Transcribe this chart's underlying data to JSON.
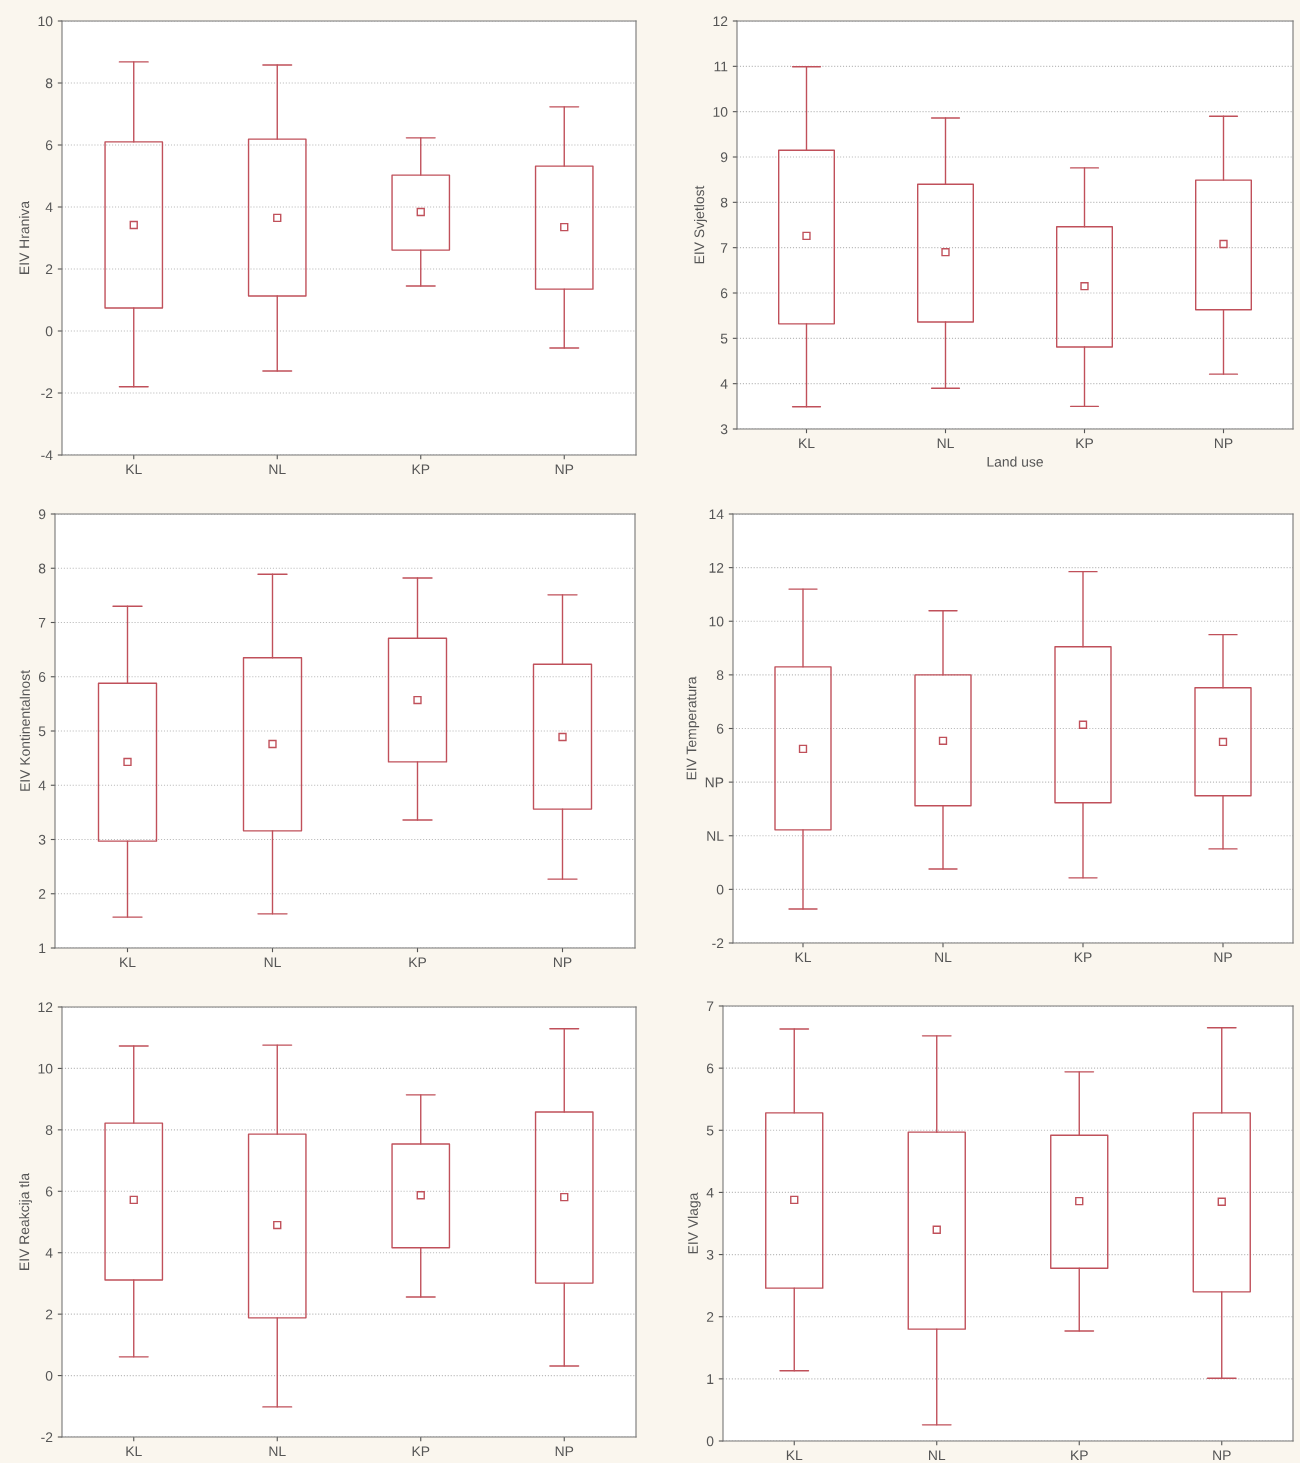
{
  "chart_data": [
    {
      "type": "box",
      "ylabel": "EIV Hraniva",
      "categories": [
        "KL",
        "NL",
        "KP",
        "NP"
      ],
      "color": "#c0505a",
      "ylim": [
        -4,
        10
      ],
      "yticks": [
        -4,
        -2,
        0,
        2,
        4,
        6,
        8,
        10
      ],
      "grid": "y",
      "boxes": [
        {
          "low": -1.8,
          "q1": 0.74,
          "mean": 3.42,
          "q3": 6.1,
          "high": 8.68
        },
        {
          "low": -1.29,
          "q1": 1.13,
          "mean": 3.65,
          "q3": 6.19,
          "high": 8.58
        },
        {
          "low": 1.45,
          "q1": 2.61,
          "mean": 3.84,
          "q3": 5.03,
          "high": 6.23
        },
        {
          "low": -0.55,
          "q1": 1.35,
          "mean": 3.35,
          "q3": 5.32,
          "high": 7.23
        }
      ]
    },
    {
      "type": "box",
      "ylabel": "EIV Svjetlost",
      "xlabel": "Land use",
      "categories": [
        "KL",
        "NL",
        "KP",
        "NP"
      ],
      "color": "#c0505a",
      "ylim": [
        3,
        12
      ],
      "yticks": [
        3,
        4,
        5,
        6,
        7,
        8,
        9,
        10,
        11,
        12
      ],
      "grid": "y",
      "boxes": [
        {
          "low": 3.49,
          "q1": 5.32,
          "mean": 7.26,
          "q3": 9.15,
          "high": 10.99
        },
        {
          "low": 3.9,
          "q1": 5.36,
          "mean": 6.9,
          "q3": 8.4,
          "high": 9.86
        },
        {
          "low": 3.5,
          "q1": 4.81,
          "mean": 6.15,
          "q3": 7.46,
          "high": 8.76
        },
        {
          "low": 4.21,
          "q1": 5.63,
          "mean": 7.08,
          "q3": 8.49,
          "high": 9.9
        }
      ]
    },
    {
      "type": "box",
      "ylabel": "EIV Kontinentalnost",
      "categories": [
        "KL",
        "NL",
        "KP",
        "NP"
      ],
      "color": "#c0505a",
      "ylim": [
        1,
        9
      ],
      "yticks": [
        1,
        2,
        3,
        4,
        5,
        6,
        7,
        8,
        9
      ],
      "grid": "y",
      "boxes": [
        {
          "low": 1.57,
          "q1": 2.97,
          "mean": 4.43,
          "q3": 5.88,
          "high": 7.3
        },
        {
          "low": 1.63,
          "q1": 3.16,
          "mean": 4.76,
          "q3": 6.35,
          "high": 7.89
        },
        {
          "low": 3.36,
          "q1": 4.43,
          "mean": 5.57,
          "q3": 6.71,
          "high": 7.82
        },
        {
          "low": 2.27,
          "q1": 3.56,
          "mean": 4.89,
          "q3": 6.23,
          "high": 7.51
        }
      ]
    },
    {
      "type": "box",
      "ylabel": "EIV Temperatura",
      "categories": [
        "KL",
        "NL",
        "KP",
        "NP"
      ],
      "color": "#c0505a",
      "ylim": [
        -2,
        14
      ],
      "yticks": [
        -2,
        0,
        {
          "value": 2,
          "label": "NL"
        },
        {
          "value": 4,
          "label": "NP"
        },
        6,
        8,
        10,
        12,
        14
      ],
      "grid": "y",
      "boxes": [
        {
          "low": -0.73,
          "q1": 2.22,
          "mean": 5.24,
          "q3": 8.3,
          "high": 11.2
        },
        {
          "low": 0.76,
          "q1": 3.12,
          "mean": 5.54,
          "q3": 8.0,
          "high": 10.39
        },
        {
          "low": 0.43,
          "q1": 3.23,
          "mean": 6.14,
          "q3": 9.05,
          "high": 11.85
        },
        {
          "low": 1.51,
          "q1": 3.49,
          "mean": 5.5,
          "q3": 7.52,
          "high": 9.5
        }
      ]
    },
    {
      "type": "box",
      "ylabel": "EIV Reakcija tla",
      "categories": [
        "KL",
        "NL",
        "KP",
        "NP"
      ],
      "color": "#c0505a",
      "ylim": [
        -2,
        12
      ],
      "yticks": [
        -2,
        0,
        2,
        4,
        6,
        8,
        10,
        12
      ],
      "grid": "y",
      "boxes": [
        {
          "low": 0.61,
          "q1": 3.11,
          "mean": 5.72,
          "q3": 8.22,
          "high": 10.73
        },
        {
          "low": -1.02,
          "q1": 1.88,
          "mean": 4.9,
          "q3": 7.86,
          "high": 10.76
        },
        {
          "low": 2.56,
          "q1": 4.16,
          "mean": 5.87,
          "q3": 7.54,
          "high": 9.14
        },
        {
          "low": 0.31,
          "q1": 3.01,
          "mean": 5.81,
          "q3": 8.58,
          "high": 11.29
        }
      ]
    },
    {
      "type": "box",
      "ylabel": "EIV Vlaga",
      "categories": [
        "KL",
        "NL",
        "KP",
        "NP"
      ],
      "color": "#c0505a",
      "ylim": [
        0,
        7
      ],
      "yticks": [
        0,
        1,
        2,
        3,
        4,
        5,
        6,
        7
      ],
      "grid": "y",
      "boxes": [
        {
          "low": 1.13,
          "q1": 2.46,
          "mean": 3.88,
          "q3": 5.28,
          "high": 6.63
        },
        {
          "low": 0.26,
          "q1": 1.8,
          "mean": 3.4,
          "q3": 4.97,
          "high": 6.52
        },
        {
          "low": 1.77,
          "q1": 2.78,
          "mean": 3.86,
          "q3": 4.92,
          "high": 5.94
        },
        {
          "low": 1.01,
          "q1": 2.4,
          "mean": 3.85,
          "q3": 5.28,
          "high": 6.65
        }
      ]
    }
  ]
}
